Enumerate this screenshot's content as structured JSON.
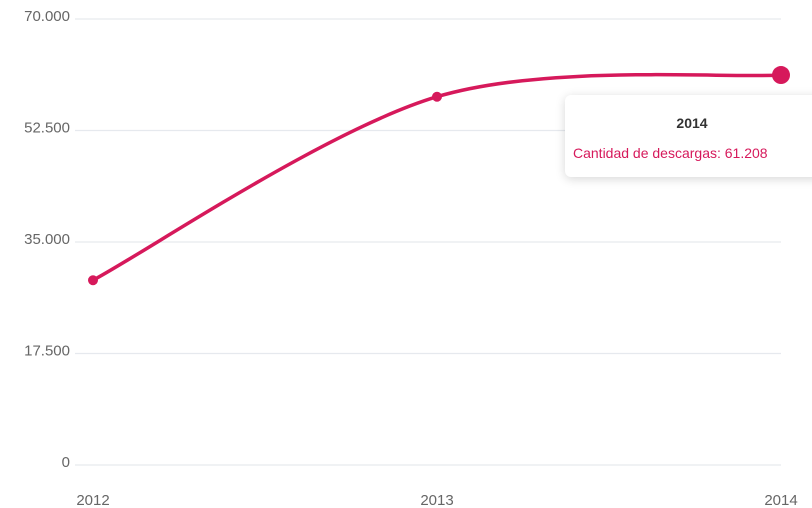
{
  "chart_data": {
    "type": "line",
    "x": [
      "2012",
      "2013",
      "2014"
    ],
    "series": [
      {
        "name": "Cantidad de descargas",
        "values": [
          29000,
          57800,
          61208
        ],
        "color": "#d6195b"
      }
    ],
    "ylim": [
      0,
      70000
    ],
    "yticks": [
      0,
      17500,
      35000,
      52500,
      70000
    ],
    "ytick_labels": [
      "0",
      "17.500",
      "35.000",
      "52.500",
      "70.000"
    ],
    "xtick_labels": [
      "2012",
      "2013",
      "2014"
    ],
    "grid": true,
    "title": "",
    "xlabel": "",
    "ylabel": "",
    "tooltip": {
      "title": "2014",
      "line": "Cantidad de descargas: 61.208"
    }
  }
}
